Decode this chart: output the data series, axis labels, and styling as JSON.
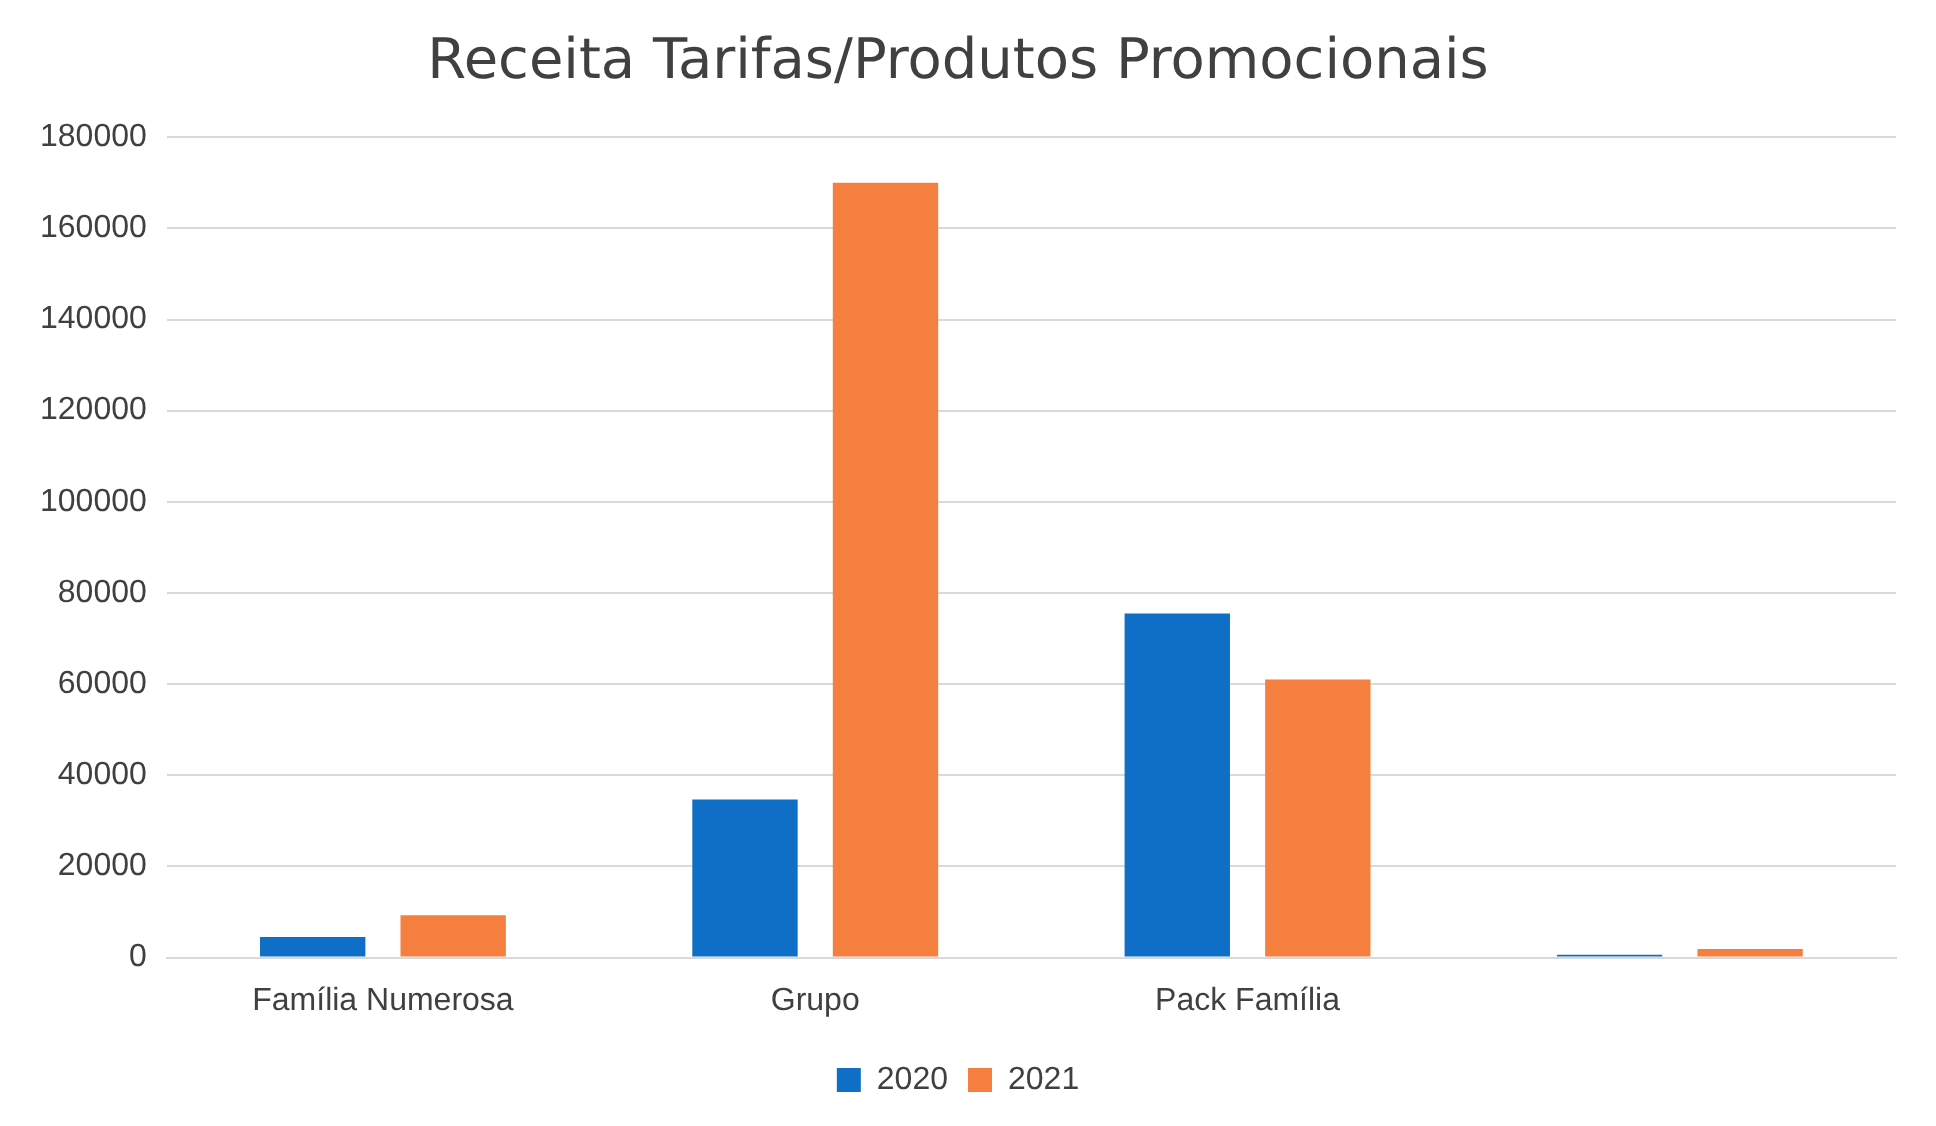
{
  "chart_data": {
    "type": "bar",
    "title": "Receita Tarifas/Produtos Promocionais",
    "categories": [
      "Família Numerosa",
      "Grupo",
      "Pack Família",
      null
    ],
    "series": [
      {
        "name": "2020",
        "color": "#0f6fc6",
        "values": [
          4500,
          34700,
          75500,
          600
        ]
      },
      {
        "name": "2021",
        "color": "#f47f3e",
        "values": [
          9300,
          170000,
          61000,
          1900
        ]
      }
    ],
    "ylim": [
      0,
      180000
    ],
    "yticks": [
      0,
      20000,
      40000,
      60000,
      80000,
      100000,
      120000,
      140000,
      160000,
      180000
    ],
    "grid": "y",
    "legend": "bottom"
  }
}
